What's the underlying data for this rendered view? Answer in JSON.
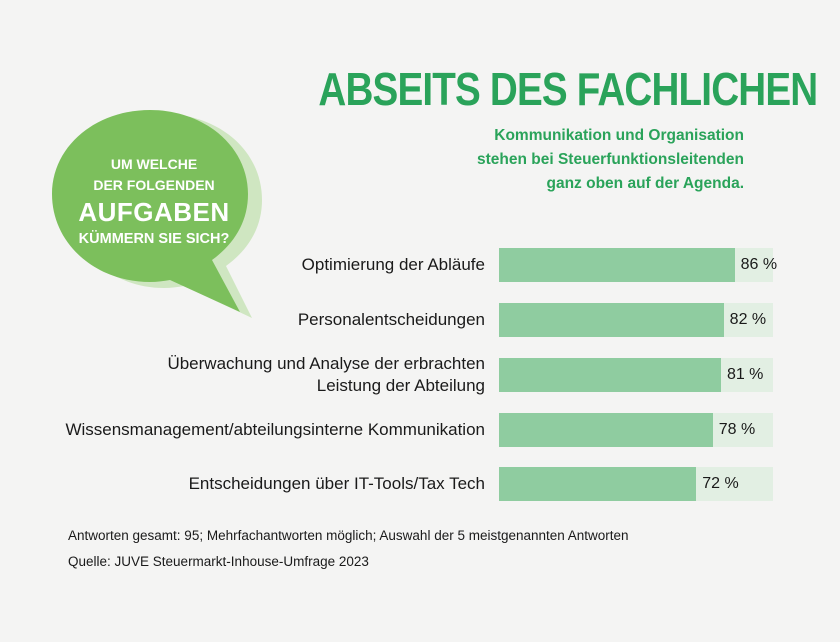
{
  "title": "ABSEITS DES FACHLICHEN",
  "subtitle": {
    "lines": [
      "Kommunikation und Organisation",
      "stehen bei Steuerfunktionsleitenden",
      "ganz oben auf der Agenda."
    ]
  },
  "bubble": {
    "line1": "UM WELCHE",
    "line2": "DER FOLGENDEN",
    "line3": "AUFGABEN",
    "line4": "KÜMMERN SIE SICH?"
  },
  "colors": {
    "accent": "#2aa35a",
    "bubble": "#7cbf5c",
    "bubble_shadow": "#cfe6c1",
    "bar": "#8fcca0",
    "track": "#e2efe3"
  },
  "chart_data": {
    "type": "bar",
    "orientation": "horizontal",
    "title": "ABSEITS DES FACHLICHEN",
    "categories": [
      "Optimierung der Abläufe",
      "Personalentscheidungen",
      "Überwachung und Analyse der erbrachten Leistung der Abteilung",
      "Wissensmanagement/abteilungsinterne Kommunikation",
      "Entscheidungen über IT-Tools/Tax Tech"
    ],
    "label_lines": [
      [
        "Optimierung der Abläufe"
      ],
      [
        "Personalentscheidungen"
      ],
      [
        "Überwachung und Analyse der erbrachten",
        "Leistung der Abteilung"
      ],
      [
        "Wissensmanagement/abteilungsinterne Kommunikation"
      ],
      [
        "Entscheidungen über IT-Tools/Tax Tech"
      ]
    ],
    "values": [
      86,
      82,
      81,
      78,
      72
    ],
    "value_labels": [
      "86 %",
      "82 %",
      "81 %",
      "78 %",
      "72 %"
    ],
    "unit": "%",
    "xlim": [
      0,
      100
    ]
  },
  "footnote": "Antworten gesamt: 95; Mehrfachantworten möglich; Auswahl der 5 meistgenannten Antworten",
  "source": "Quelle: JUVE Steuermarkt-Inhouse-Umfrage 2023"
}
